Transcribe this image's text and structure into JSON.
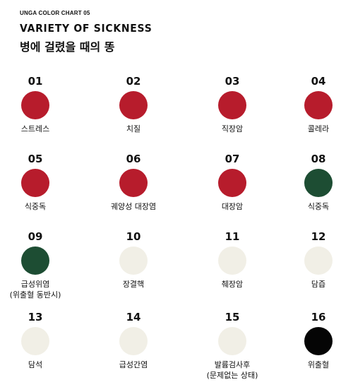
{
  "header": {
    "kicker": "UNGA COLOR CHART 05",
    "title": "VARIETY OF SICKNESS",
    "subtitle": "병에 걸렸을 때의 똥"
  },
  "swatches": [
    {
      "num": "01",
      "name": "스트레스",
      "note": "",
      "color": "#b71c2c"
    },
    {
      "num": "02",
      "name": "치질",
      "note": "",
      "color": "#b71c2c"
    },
    {
      "num": "03",
      "name": "직장암",
      "note": "",
      "color": "#b71c2c"
    },
    {
      "num": "04",
      "name": "콜레라",
      "note": "",
      "color": "#b71c2c"
    },
    {
      "num": "05",
      "name": "식중독",
      "note": "",
      "color": "#b71c2c"
    },
    {
      "num": "06",
      "name": "궤양성 대장염",
      "note": "",
      "color": "#b71c2c"
    },
    {
      "num": "07",
      "name": "대장암",
      "note": "",
      "color": "#b71c2c"
    },
    {
      "num": "08",
      "name": "식중독",
      "note": "",
      "color": "#1d4d33"
    },
    {
      "num": "09",
      "name": "급성위염",
      "note": "(위출혈 동반시)",
      "color": "#1d4d33"
    },
    {
      "num": "10",
      "name": "장결핵",
      "note": "",
      "color": "#f1efe6"
    },
    {
      "num": "11",
      "name": "췌장암",
      "note": "",
      "color": "#f1efe6"
    },
    {
      "num": "12",
      "name": "담즙",
      "note": "",
      "color": "#f1efe6"
    },
    {
      "num": "13",
      "name": "담석",
      "note": "",
      "color": "#f1efe6"
    },
    {
      "num": "14",
      "name": "급성간염",
      "note": "",
      "color": "#f1efe6"
    },
    {
      "num": "15",
      "name": "발륨검사후",
      "note": "(문제없는 상태)",
      "color": "#f1efe6"
    },
    {
      "num": "16",
      "name": "위출혈",
      "note": "",
      "color": "#050505"
    }
  ]
}
